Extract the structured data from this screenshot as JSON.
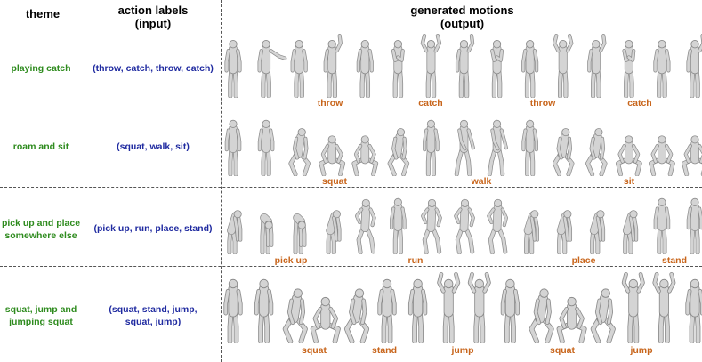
{
  "headers": {
    "theme": "theme",
    "actions": [
      "action labels",
      "(input)"
    ],
    "motions": [
      "generated motions",
      "(output)"
    ]
  },
  "colors": {
    "theme": "#2e8b1e",
    "actions": "#1f2aa0",
    "motion_labels": "#c8651b",
    "figure_fill": "#d4d4d4",
    "figure_stroke": "#8a8a8a"
  },
  "rows": [
    {
      "theme": [
        "playing catch"
      ],
      "actions": [
        "(throw, catch, throw, catch)"
      ],
      "labels": [
        "throw",
        "catch",
        "throw",
        "catch"
      ],
      "poses": [
        "stand",
        "armout",
        "stand",
        "armup",
        "stand",
        "armfront",
        "armsup",
        "armup",
        "armfront",
        "stand",
        "armsup",
        "armup",
        "armfront",
        "stand",
        "armup"
      ]
    },
    {
      "theme": [
        "roam and sit"
      ],
      "actions": [
        "(squat, walk, sit)"
      ],
      "labels": [
        "squat",
        "walk",
        "sit"
      ],
      "poses": [
        "stand",
        "stand",
        "crouch",
        "squat",
        "squat",
        "crouch",
        "stand",
        "walk",
        "walk",
        "stand",
        "crouch",
        "crouch",
        "squat",
        "squat",
        "squat"
      ]
    },
    {
      "theme": [
        "pick up and place",
        "somewhere else"
      ],
      "actions": [
        "(pick up, run, place, stand)"
      ],
      "labels": [
        "pick up",
        "run",
        "place",
        "stand"
      ],
      "poses": [
        "bend",
        "bendlow",
        "bendlow",
        "bend",
        "run",
        "stand",
        "run",
        "run",
        "run",
        "bend",
        "bend",
        "bend",
        "bend",
        "stand",
        "stand"
      ]
    },
    {
      "theme": [
        "squat, jump and",
        "jumping squat"
      ],
      "actions": [
        "(squat, stand, jump,",
        "squat, jump)"
      ],
      "labels": [
        "squat",
        "stand",
        "jump",
        "squat",
        "jump"
      ],
      "poses": [
        "stand",
        "stand",
        "crouch",
        "squat",
        "crouch",
        "stand",
        "stand",
        "armsup",
        "armsup",
        "stand",
        "crouch",
        "squat",
        "crouch",
        "armsup",
        "armsup",
        "stand"
      ]
    }
  ]
}
